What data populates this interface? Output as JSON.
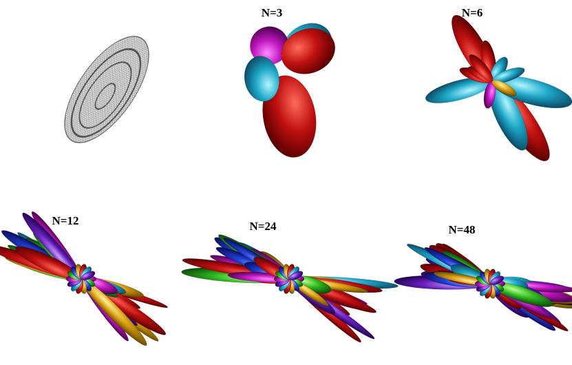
{
  "labels": [
    "N=3",
    "N=6",
    "N=12",
    "N=24",
    "N=48"
  ]
}
